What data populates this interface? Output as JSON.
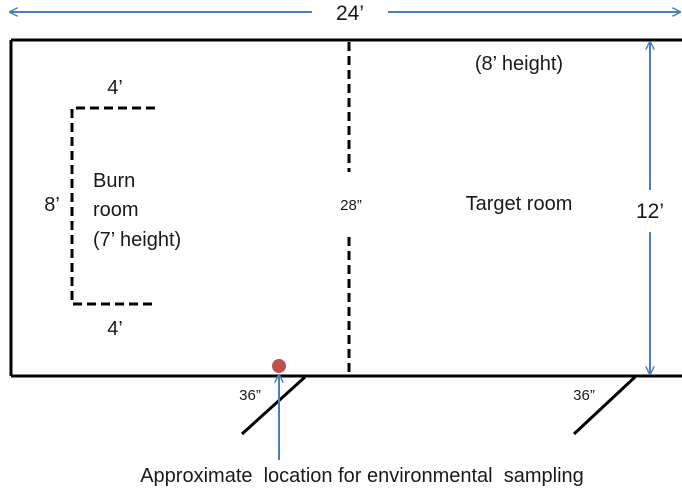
{
  "width_label": "24’",
  "target_height_label": "(8’ height)",
  "depth_label": "12’",
  "burn_room": {
    "top_label": "4’",
    "bottom_label": "4’",
    "side_label": "8’",
    "name_line1": "Burn",
    "name_line2": "room",
    "name_line3": "(7’ height)"
  },
  "doorway_label": "28”",
  "target_room_label": "Target room",
  "door_left_label": "36”",
  "door_right_label": "36”",
  "sampling_caption": "Approximate  location for environmental  sampling",
  "colors": {
    "arrow": "#4a7ebb",
    "sampling_point": "#c0504d",
    "walls": "#000000"
  }
}
